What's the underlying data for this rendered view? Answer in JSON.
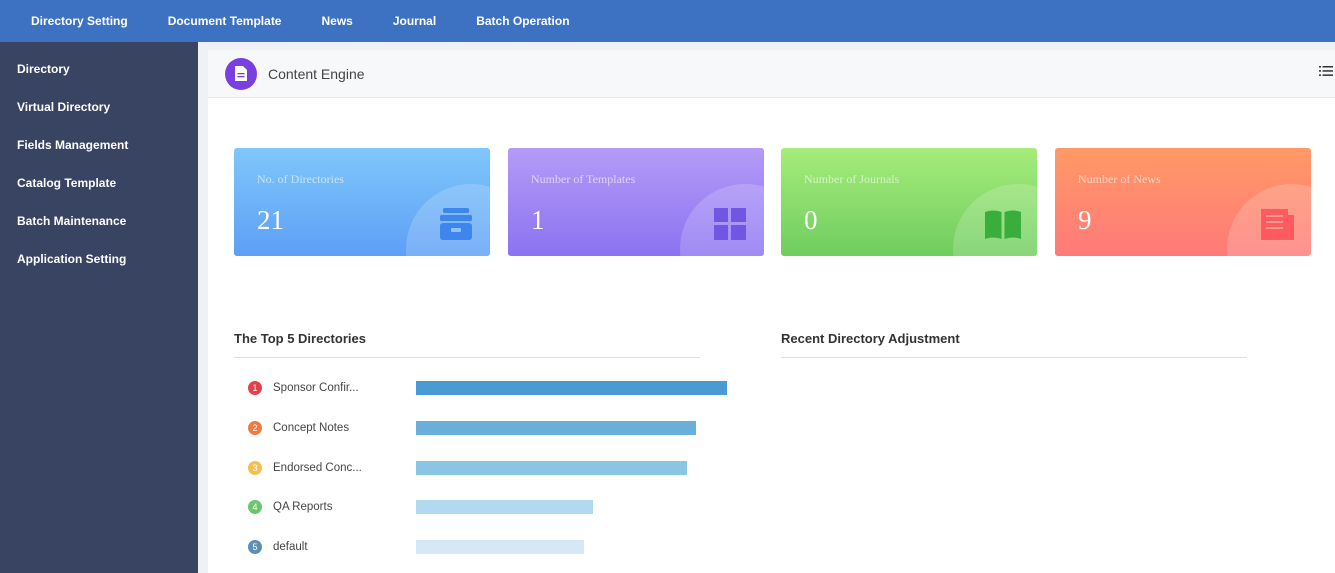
{
  "topnav": {
    "items": [
      {
        "label": "Directory Setting"
      },
      {
        "label": "Document Template"
      },
      {
        "label": "News"
      },
      {
        "label": "Journal"
      },
      {
        "label": "Batch Operation"
      }
    ]
  },
  "sidebar": {
    "items": [
      {
        "label": "Directory"
      },
      {
        "label": "Virtual Directory"
      },
      {
        "label": "Fields Management"
      },
      {
        "label": "Catalog Template"
      },
      {
        "label": "Batch Maintenance"
      },
      {
        "label": "Application Setting"
      }
    ]
  },
  "header": {
    "title": "Content Engine",
    "logo_icon": "document-icon",
    "menu_icon": "list-menu-icon"
  },
  "stats": [
    {
      "label": "No. of Directories",
      "value": "21",
      "icon": "archive-box-icon"
    },
    {
      "label": "Number of Templates",
      "value": "1",
      "icon": "grid-icon"
    },
    {
      "label": "Number of Journals",
      "value": "0",
      "icon": "open-book-icon"
    },
    {
      "label": "Number of News",
      "value": "9",
      "icon": "newspaper-icon"
    }
  ],
  "top_directories": {
    "title": "The Top 5 Directories",
    "items": [
      {
        "rank": "1",
        "name": "Sponsor Confir...",
        "bar_fraction": 1.0,
        "badge_color": "#e0434c",
        "bar_color": "#4a9bd4"
      },
      {
        "rank": "2",
        "name": "Concept Notes",
        "bar_fraction": 0.9,
        "badge_color": "#ee7b45",
        "bar_color": "#6aaedc"
      },
      {
        "rank": "3",
        "name": "Endorsed Conc...",
        "bar_fraction": 0.87,
        "badge_color": "#f3c054",
        "bar_color": "#8ac5e3"
      },
      {
        "rank": "4",
        "name": "QA Reports",
        "bar_fraction": 0.57,
        "badge_color": "#6cc66e",
        "bar_color": "#b1d9ef"
      },
      {
        "rank": "5",
        "name": "default",
        "bar_fraction": 0.54,
        "badge_color": "#5b8fb6",
        "bar_color": "#d6e8f5"
      }
    ]
  },
  "recent_adjustment": {
    "title": "Recent Directory Adjustment"
  }
}
